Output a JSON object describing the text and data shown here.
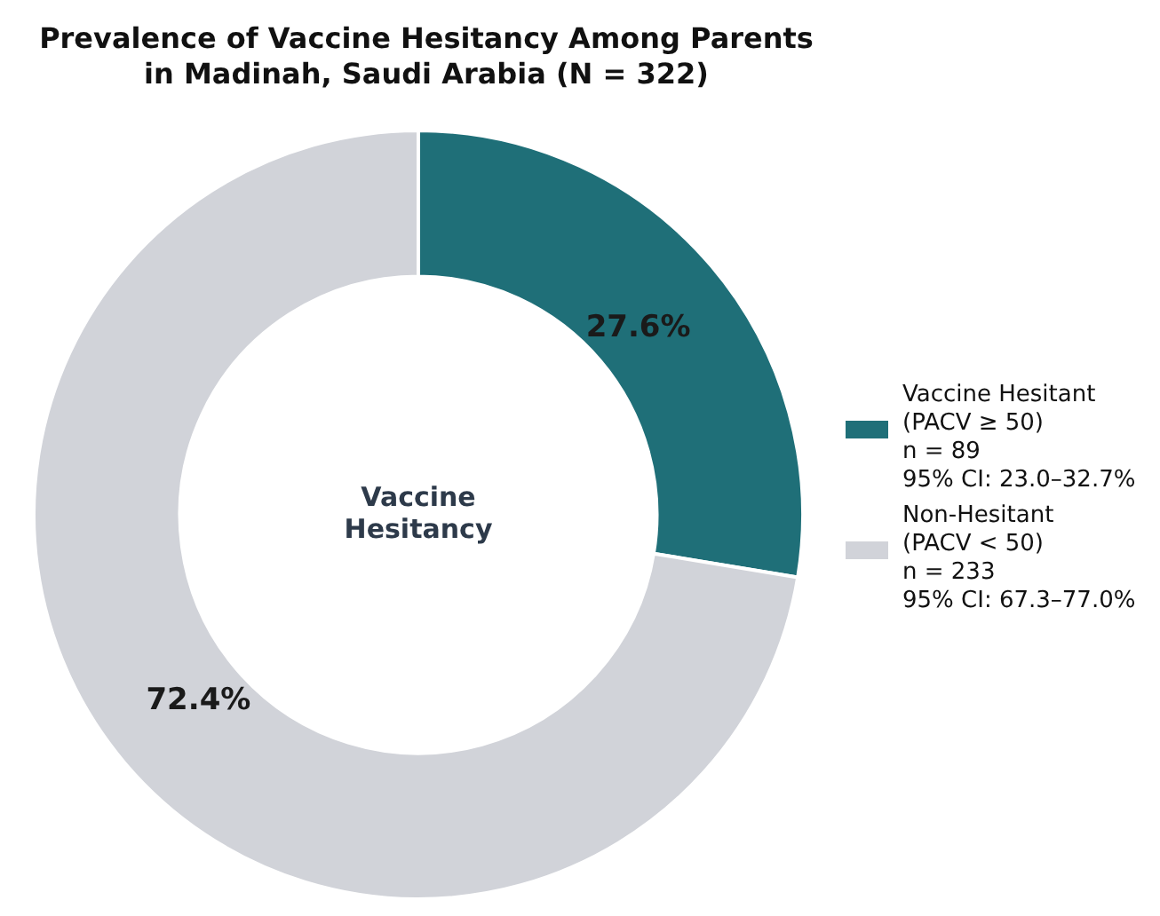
{
  "chart_data": {
    "type": "donut",
    "title": "Prevalence of Vaccine Hesitancy Among Parents in Madinah, Saudi Arabia (N = 322)",
    "categories": [
      "Vaccine Hesitant\n(PACV ≥ 50)\nn = 89\n95% CI: 23.0–32.7%",
      "Non-Hesitant\n(PACV < 50)\nn = 233\n95% CI: 67.3–77.0%"
    ],
    "values": [
      27.6,
      72.4
    ],
    "colors": [
      "#1f6f78",
      "#d1d3d9"
    ],
    "value_labels": [
      "27.6%",
      "72.4%"
    ],
    "annotations": [
      "Vaccine Hesitancy"
    ],
    "legend": "right"
  }
}
